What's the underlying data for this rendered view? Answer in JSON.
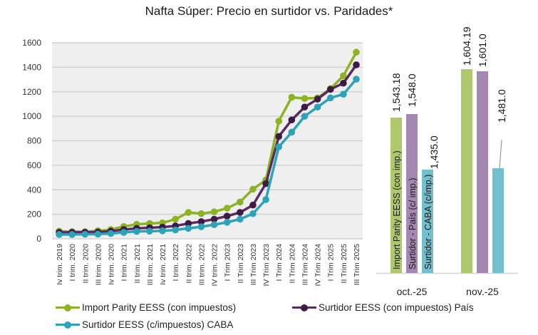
{
  "chart_data": [
    {
      "type": "line",
      "title": "Nafta Súper: Precio en surtidor vs. Paridades*",
      "xlabel": "",
      "ylabel": "",
      "ylim": [
        0,
        1600
      ],
      "yticks": [
        "0",
        "200",
        "400",
        "600",
        "800",
        "1000",
        "1200",
        "1400",
        "1600"
      ],
      "grid": true,
      "legend_position": "bottom",
      "categories": [
        "Iv trim. 2019",
        "I trim. 2020",
        "II trim. 2020",
        "III trim. 2020",
        "Iv trim. 2020",
        "I trim. 2021",
        "II trim. 2021",
        "III trim. 2021",
        "Iv trim. 2021",
        "I trim. 2022",
        "II trim. 2022",
        "III trim. 2022",
        "IV trim. 2022",
        "I Trim 2023",
        "II Trim 2023",
        "III Trim 2023",
        "IV Trim 2023",
        "I Trim 2024",
        "II Trim 2024",
        "III Trim 2024",
        "IV Trim 2024",
        "I Trim 2025",
        "II Trim 2025",
        "III Trim 2025"
      ],
      "series": [
        {
          "name": "Import Parity EESS (con impuestos)",
          "color": "#8db322",
          "values": [
            62,
            58,
            58,
            65,
            75,
            100,
            118,
            125,
            130,
            160,
            215,
            205,
            220,
            250,
            300,
            405,
            480,
            960,
            1155,
            1145,
            1150,
            1225,
            1330,
            1523
          ]
        },
        {
          "name": "Surtidor EESS (con impuestos) País",
          "color": "#5b2a62",
          "values": [
            52,
            53,
            53,
            55,
            62,
            75,
            85,
            90,
            95,
            105,
            125,
            140,
            160,
            185,
            215,
            275,
            450,
            835,
            970,
            1075,
            1140,
            1220,
            1270,
            1420
          ]
        },
        {
          "name": "Surtidor EESS (c/impuestos) CABA",
          "color": "#2ba3b8",
          "values": [
            35,
            35,
            37,
            38,
            43,
            52,
            60,
            62,
            65,
            72,
            85,
            98,
            115,
            135,
            160,
            205,
            320,
            750,
            870,
            1000,
            1075,
            1150,
            1180,
            1303
          ]
        }
      ]
    },
    {
      "type": "bar",
      "categories": [
        "oct.-25",
        "nov.-25"
      ],
      "series": [
        {
          "name": "Import Parity EESS (con imp.)",
          "color": "#b0c86c",
          "values": [
            1543.18,
            1604.19
          ],
          "labels": [
            "1,543.18",
            "1,604.19"
          ]
        },
        {
          "name": "Surtidor - País (c/ imp.)",
          "color": "#a488b2",
          "values": [
            1548.0,
            1601.0
          ],
          "labels": [
            "1,548.0",
            "1,601.0"
          ]
        },
        {
          "name": "Surtidor - CABA (c/imp.)",
          "color": "#72bfcd",
          "values": [
            1435.0,
            1481.0
          ],
          "labels": [
            "1,435.0",
            "1,481.0"
          ]
        }
      ],
      "axis_visible": false,
      "note": "bars drawn on a broken (non-zero-based) scale"
    }
  ]
}
